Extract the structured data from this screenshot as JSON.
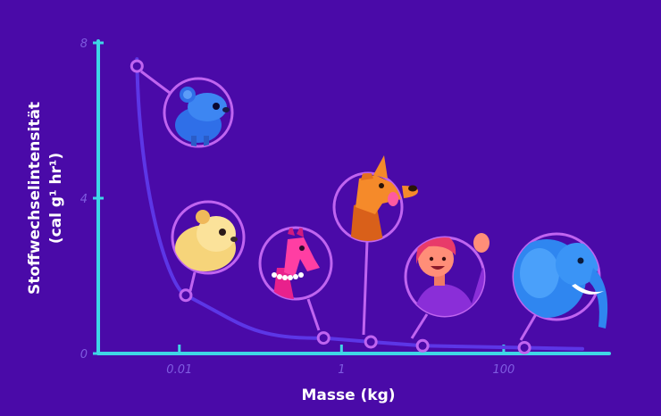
{
  "chart_data": {
    "type": "line",
    "title": "",
    "xlabel": "Masse (kg)",
    "ylabel_line1": "Stoffwechselintensität",
    "ylabel_line2": "(cal g¹ hr¹)",
    "x_scale": "log",
    "xlim": [
      0.001,
      2000
    ],
    "ylim": [
      0,
      8
    ],
    "x_ticks": [
      {
        "value": 0.01,
        "label": "0.01"
      },
      {
        "value": 1,
        "label": "1"
      },
      {
        "value": 100,
        "label": "100"
      }
    ],
    "y_ticks": [
      {
        "value": 0,
        "label": "0"
      },
      {
        "value": 4,
        "label": "4"
      },
      {
        "value": 8,
        "label": "8"
      }
    ],
    "points": [
      {
        "animal": "Maus",
        "x": 0.003,
        "y": 7.4
      },
      {
        "animal": "Hamster",
        "x": 0.012,
        "y": 1.5
      },
      {
        "animal": "Lama",
        "x": 0.6,
        "y": 0.4
      },
      {
        "animal": "Hund",
        "x": 2.3,
        "y": 0.3
      },
      {
        "animal": "Mensch",
        "x": 10,
        "y": 0.2
      },
      {
        "animal": "Elefant",
        "x": 180,
        "y": 0.15
      }
    ],
    "colors": {
      "background": "#4a0aa8",
      "axis": "#3fd6e6",
      "curve": "#5c36e6",
      "marker": "#c064f0"
    }
  }
}
